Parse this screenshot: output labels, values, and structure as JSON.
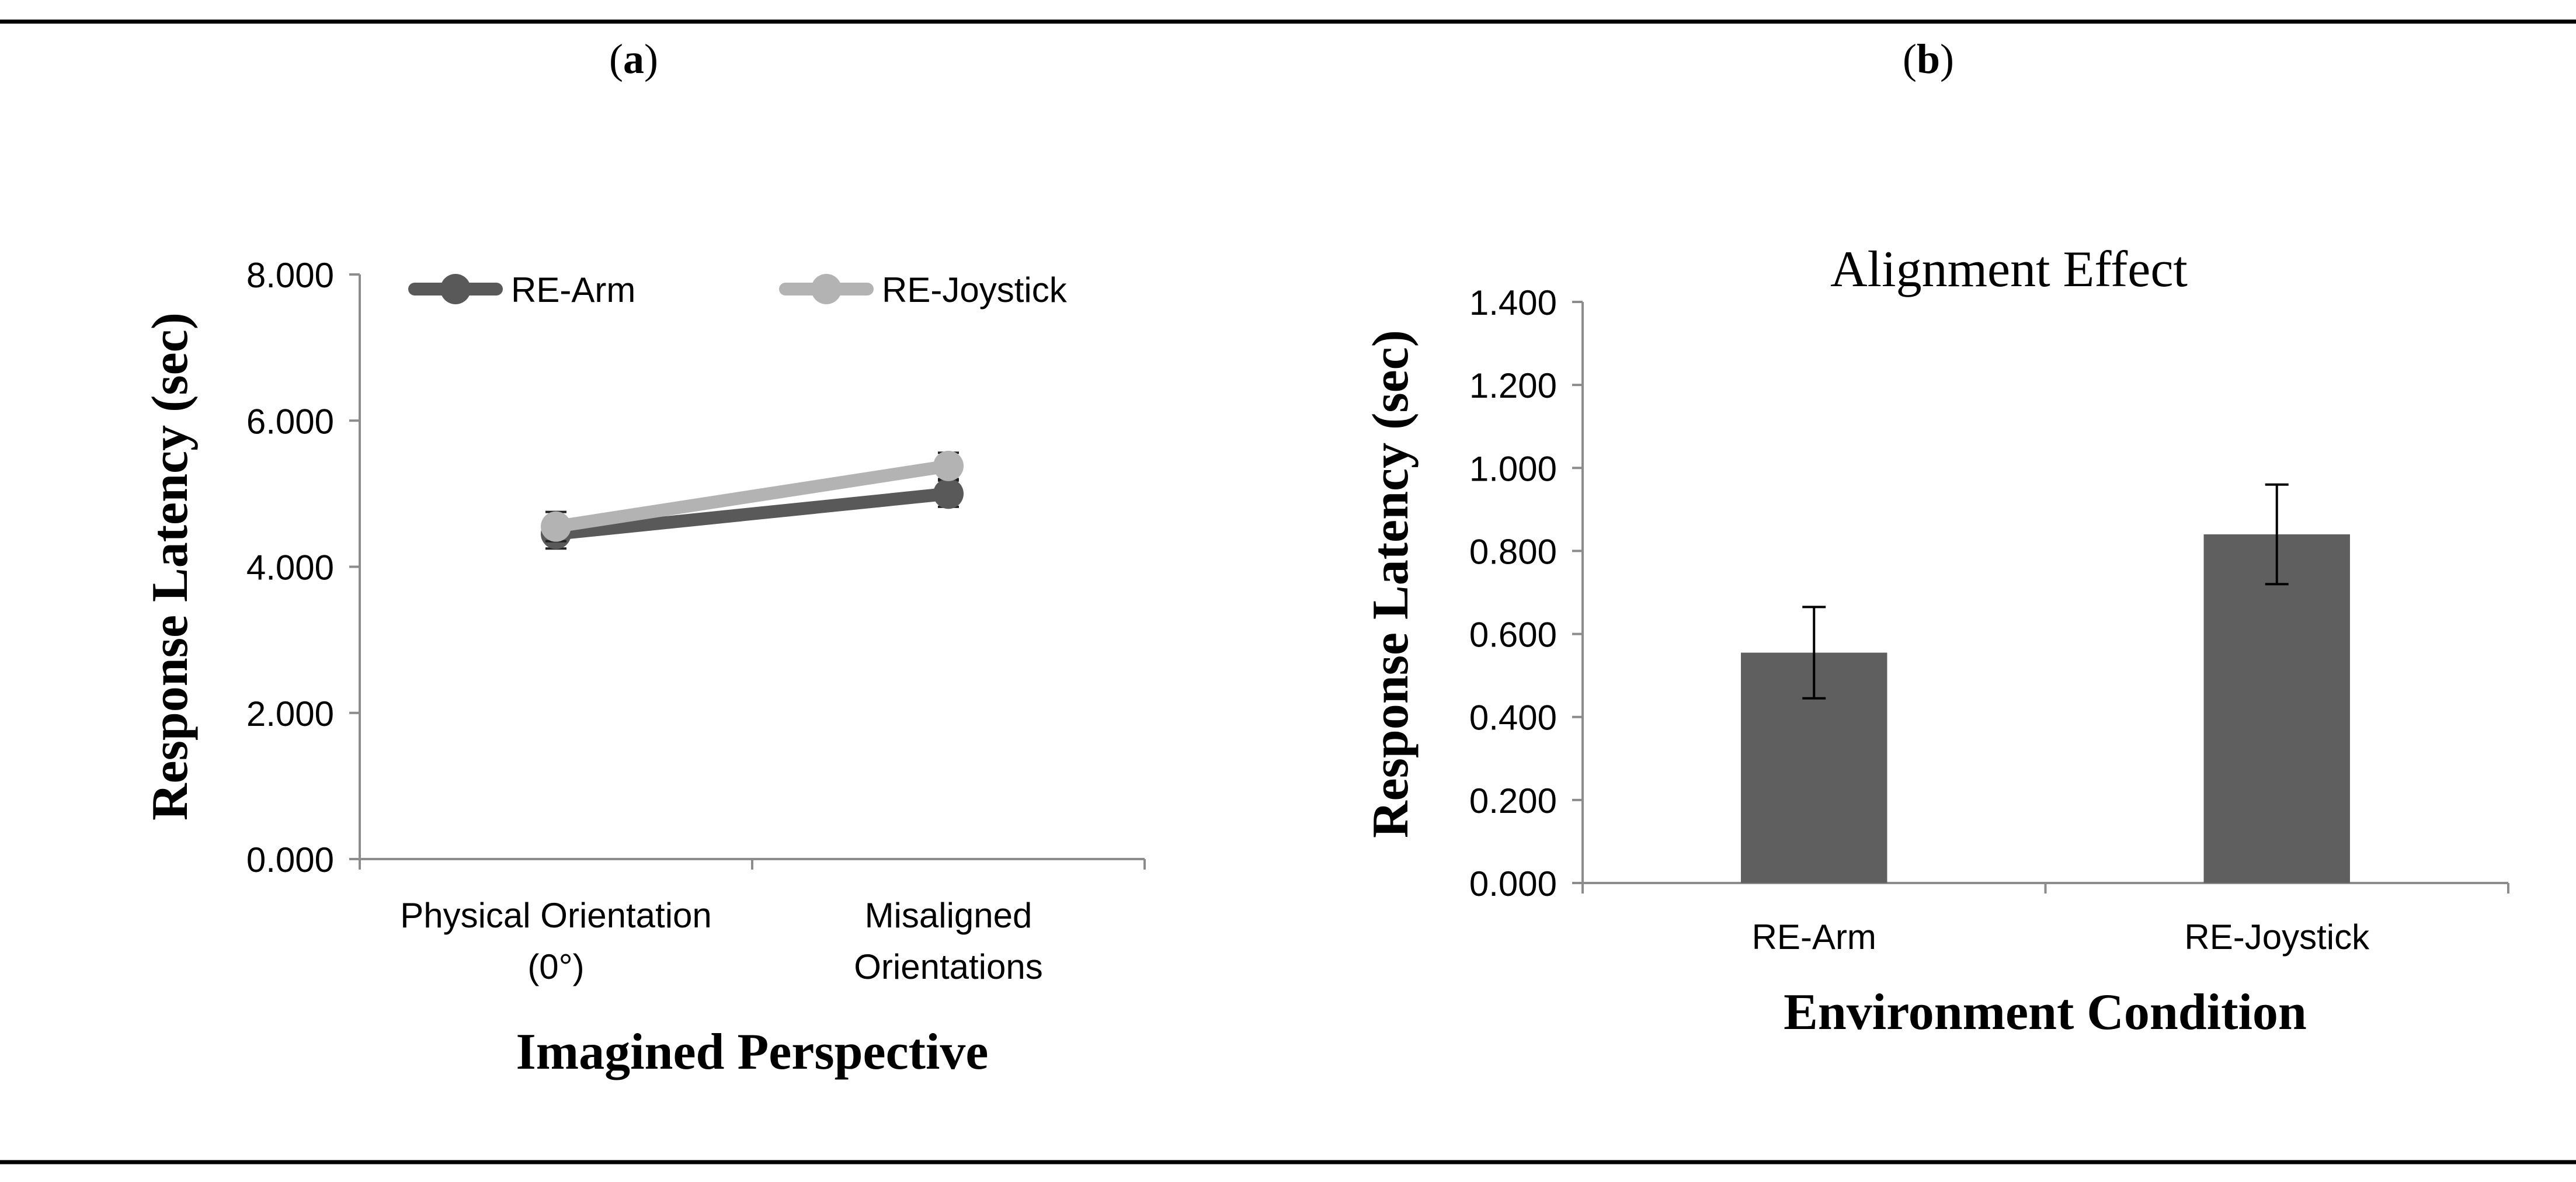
{
  "panels": {
    "a_label_prefix": "(",
    "a_label_letter": "a",
    "a_label_suffix": ")",
    "b_label_prefix": "(",
    "b_label_letter": "b",
    "b_label_suffix": ")"
  },
  "chart_data": [
    {
      "type": "line",
      "title": "",
      "xlabel": "Imagined Perspective",
      "ylabel": "Response Latency (sec)",
      "categories": [
        [
          "Physical Orientation",
          "(0°)"
        ],
        [
          "Misaligned",
          "Orientations"
        ]
      ],
      "ylim": [
        0,
        8
      ],
      "yticks": [
        "0.000",
        "2.000",
        "4.000",
        "6.000",
        "8.000"
      ],
      "ytick_values": [
        0,
        2,
        4,
        6,
        8
      ],
      "legend_position": "top",
      "series": [
        {
          "name": "RE-Arm",
          "color": "#595959",
          "values": [
            4.45,
            5.0
          ],
          "errors": [
            0.2,
            0.18
          ]
        },
        {
          "name": "RE-Joystick",
          "color": "#b3b3b3",
          "values": [
            4.55,
            5.38
          ],
          "errors": [
            0.2,
            0.18
          ]
        }
      ]
    },
    {
      "type": "bar",
      "title": "Alignment Effect",
      "xlabel": "Environment Condition",
      "ylabel": "Response Latency (sec)",
      "categories": [
        "RE-Arm",
        "RE-Joystick"
      ],
      "ylim": [
        0,
        1.4
      ],
      "yticks": [
        "0.000",
        "0.200",
        "0.400",
        "0.600",
        "0.800",
        "1.000",
        "1.200",
        "1.400"
      ],
      "ytick_values": [
        0,
        0.2,
        0.4,
        0.6,
        0.8,
        1.0,
        1.2,
        1.4
      ],
      "bar_color": "#5f5f5f",
      "values": [
        0.555,
        0.84
      ],
      "errors": [
        0.11,
        0.12
      ]
    }
  ]
}
